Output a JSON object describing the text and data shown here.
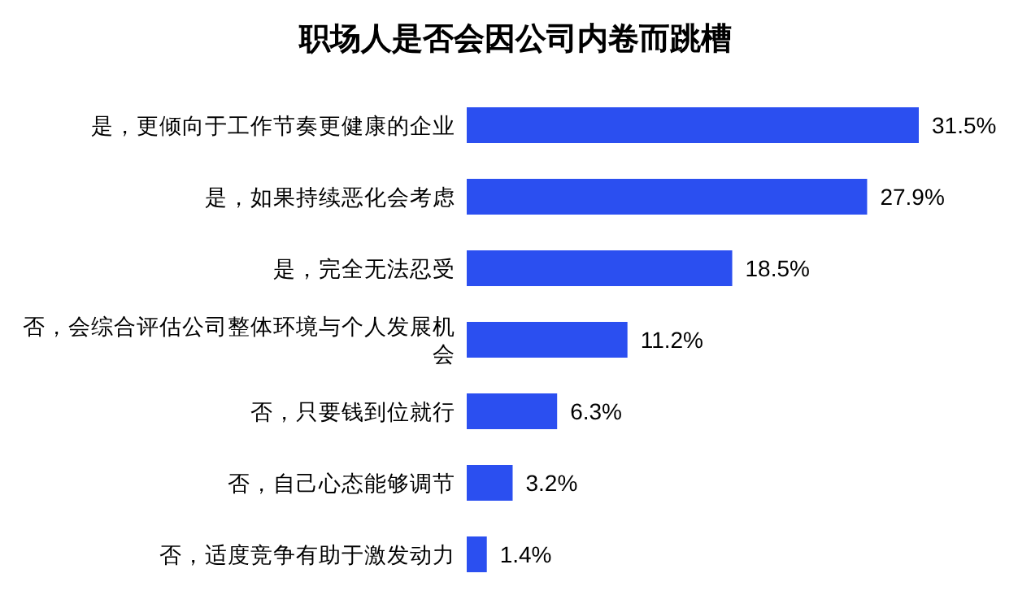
{
  "chart_data": {
    "type": "bar",
    "orientation": "horizontal",
    "title": "职场人是否会因公司内卷而跳槽",
    "categories": [
      "是，更倾向于工作节奏更健康的企业",
      "是，如果持续恶化会考虑",
      "是，完全无法忍受",
      "否，会综合评估公司整体环境与个人发展机会",
      "否，只要钱到位就行",
      "否，自己心态能够调节",
      "否，适度竞争有助于激发动力"
    ],
    "values": [
      31.5,
      27.9,
      18.5,
      11.2,
      6.3,
      3.2,
      1.4
    ],
    "value_labels": [
      "31.5%",
      "27.9%",
      "18.5%",
      "11.2%",
      "6.3%",
      "3.2%",
      "1.4%"
    ],
    "color": "#2b4ff0"
  }
}
